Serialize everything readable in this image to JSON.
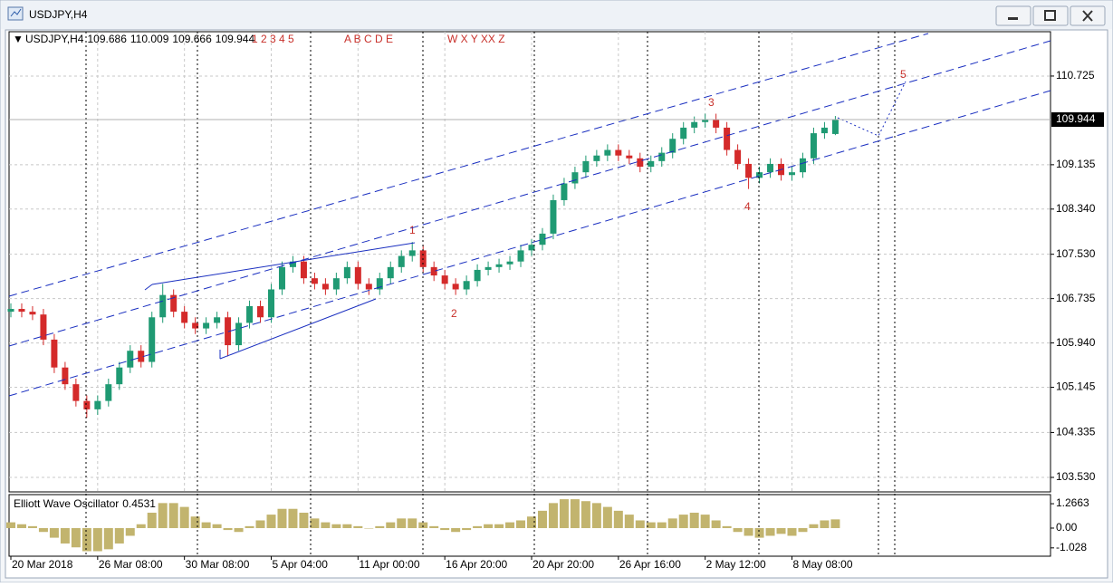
{
  "window": {
    "title": "USDJPY,H4"
  },
  "chart_data": [
    {
      "type": "candlestick",
      "symbol": "USDJPY,H4",
      "wave_labels": [
        "1 2 3 4 5",
        "A B C D E",
        "W X Y XX Z"
      ],
      "annotations": [
        "1",
        "2",
        "3",
        "4",
        "5"
      ],
      "x": [
        0,
        3,
        6,
        9,
        12,
        15,
        18,
        21,
        24,
        27,
        30,
        33,
        36,
        39,
        42,
        45,
        48,
        51,
        54,
        57,
        60,
        63,
        66,
        69,
        72,
        75,
        78,
        81,
        84,
        87,
        90,
        93,
        96,
        99,
        102,
        105,
        108,
        111,
        114,
        117,
        120,
        123,
        126,
        129,
        132,
        135,
        138,
        141,
        144,
        147,
        150,
        153,
        156,
        159,
        162,
        165,
        168,
        171,
        174,
        177,
        180,
        183,
        186,
        189,
        192,
        195,
        198,
        201,
        204,
        207,
        210,
        213,
        216,
        219,
        222,
        225,
        228
      ],
      "open": [
        106.5,
        106.55,
        106.5,
        106.45,
        106.0,
        105.5,
        105.2,
        104.9,
        104.75,
        104.9,
        105.2,
        105.5,
        105.8,
        105.6,
        106.4,
        106.8,
        106.5,
        106.3,
        106.2,
        106.3,
        106.4,
        105.9,
        106.3,
        106.6,
        106.4,
        106.9,
        107.3,
        107.4,
        107.1,
        107.0,
        106.9,
        107.1,
        107.3,
        107.0,
        106.9,
        107.1,
        107.3,
        107.5,
        107.6,
        107.3,
        107.15,
        107.0,
        106.9,
        107.05,
        107.25,
        107.3,
        107.35,
        107.4,
        107.6,
        107.7,
        107.9,
        108.5,
        108.8,
        109.0,
        109.2,
        109.3,
        109.4,
        109.3,
        109.25,
        109.1,
        109.2,
        109.35,
        109.6,
        109.8,
        109.9,
        109.95,
        109.8,
        109.4,
        109.15,
        108.9,
        109.0,
        109.15,
        108.95,
        109.0,
        109.25,
        109.7,
        109.686
      ],
      "high": [
        106.65,
        106.65,
        106.6,
        106.55,
        106.1,
        105.6,
        105.3,
        105.0,
        105.0,
        105.3,
        105.6,
        105.9,
        105.9,
        106.5,
        107.0,
        106.9,
        106.6,
        106.4,
        106.4,
        106.5,
        106.5,
        106.4,
        106.7,
        106.7,
        107.0,
        107.4,
        107.5,
        107.5,
        107.2,
        107.1,
        107.2,
        107.4,
        107.4,
        107.1,
        107.2,
        107.4,
        107.6,
        107.75,
        107.7,
        107.4,
        107.25,
        107.1,
        107.15,
        107.35,
        107.4,
        107.45,
        107.5,
        107.7,
        107.8,
        108.0,
        108.6,
        108.9,
        109.1,
        109.3,
        109.4,
        109.5,
        109.5,
        109.4,
        109.35,
        109.3,
        109.45,
        109.7,
        109.9,
        110.0,
        110.05,
        110.05,
        109.9,
        109.5,
        109.25,
        109.1,
        109.25,
        109.25,
        109.1,
        109.35,
        109.8,
        109.9,
        110.009
      ],
      "low": [
        106.4,
        106.4,
        106.35,
        105.9,
        105.4,
        105.1,
        104.8,
        104.6,
        104.65,
        104.8,
        105.1,
        105.4,
        105.5,
        105.5,
        106.3,
        106.4,
        106.2,
        106.1,
        106.1,
        106.2,
        105.7,
        105.8,
        106.2,
        106.3,
        106.3,
        106.8,
        107.2,
        107.0,
        106.9,
        106.8,
        106.8,
        107.0,
        106.9,
        106.8,
        106.8,
        107.0,
        107.2,
        107.4,
        107.2,
        107.05,
        106.9,
        106.8,
        106.8,
        106.95,
        107.15,
        107.2,
        107.25,
        107.3,
        107.5,
        107.6,
        107.8,
        108.4,
        108.7,
        108.9,
        109.1,
        109.2,
        109.2,
        109.15,
        109.0,
        109.0,
        109.1,
        109.25,
        109.5,
        109.7,
        109.8,
        109.7,
        109.3,
        109.05,
        108.7,
        108.8,
        108.9,
        108.85,
        108.85,
        108.9,
        109.15,
        109.6,
        109.666
      ],
      "close": [
        106.55,
        106.5,
        106.45,
        106.0,
        105.5,
        105.2,
        104.9,
        104.75,
        104.9,
        105.2,
        105.5,
        105.8,
        105.6,
        106.4,
        106.8,
        106.5,
        106.3,
        106.2,
        106.3,
        106.4,
        105.9,
        106.3,
        106.6,
        106.4,
        106.9,
        107.3,
        107.4,
        107.1,
        107.0,
        106.9,
        107.1,
        107.3,
        107.0,
        106.9,
        107.1,
        107.3,
        107.5,
        107.6,
        107.3,
        107.15,
        107.0,
        106.9,
        107.05,
        107.25,
        107.3,
        107.35,
        107.4,
        107.6,
        107.7,
        107.9,
        108.5,
        108.8,
        109.0,
        109.2,
        109.3,
        109.4,
        109.3,
        109.25,
        109.1,
        109.2,
        109.35,
        109.6,
        109.8,
        109.9,
        109.95,
        109.8,
        109.4,
        109.15,
        108.9,
        109.0,
        109.15,
        108.95,
        109.0,
        109.25,
        109.7,
        109.8,
        109.944
      ],
      "up_color": "#1f9a73",
      "down_color": "#d42a2a",
      "grid": true,
      "xlim": [
        -0.5,
        287.5
      ],
      "xticks": [
        {
          "value": 0,
          "label": "20 Mar 2018"
        },
        {
          "value": 24,
          "label": "26 Mar 08:00"
        },
        {
          "value": 48,
          "label": "30 Mar 08:00"
        },
        {
          "value": 72,
          "label": "5 Apr 04:00"
        },
        {
          "value": 96,
          "label": "11 Apr 00:00"
        },
        {
          "value": 120,
          "label": "16 Apr 20:00"
        },
        {
          "value": 144,
          "label": "20 Apr 20:00"
        },
        {
          "value": 168,
          "label": "26 Apr 16:00"
        },
        {
          "value": 192,
          "label": "2 May 12:00"
        },
        {
          "value": 216,
          "label": "8 May 08:00"
        }
      ],
      "ylim": [
        103.27,
        111.52
      ],
      "yticks": [
        110.725,
        109.135,
        {
          "value": 108.34,
          "label": "108.340"
        },
        {
          "value": 107.53,
          "label": "107.530"
        },
        106.735,
        {
          "value": 105.94,
          "label": "105.940"
        },
        105.145,
        104.335,
        {
          "value": 103.53,
          "label": "103.530"
        }
      ]
    },
    {
      "type": "bar",
      "title": "Elliott Wave Oscillator",
      "color": "#c2b46e",
      "x": [
        0,
        3,
        6,
        9,
        12,
        15,
        18,
        21,
        24,
        27,
        30,
        33,
        36,
        39,
        42,
        45,
        48,
        51,
        54,
        57,
        60,
        63,
        66,
        69,
        72,
        75,
        78,
        81,
        84,
        87,
        90,
        93,
        96,
        99,
        102,
        105,
        108,
        111,
        114,
        117,
        120,
        123,
        126,
        129,
        132,
        135,
        138,
        141,
        144,
        147,
        150,
        153,
        156,
        159,
        162,
        165,
        168,
        171,
        174,
        177,
        180,
        183,
        186,
        189,
        192,
        195,
        198,
        201,
        204,
        207,
        210,
        213,
        216,
        219,
        222,
        225,
        228
      ],
      "values": [
        0.3,
        0.2,
        0.1,
        -0.2,
        -0.5,
        -0.8,
        -1.0,
        -1.2,
        -1.2,
        -1.1,
        -0.8,
        -0.4,
        0.2,
        0.8,
        1.3,
        1.3,
        1.1,
        0.6,
        0.3,
        0.2,
        -0.1,
        -0.2,
        0.1,
        0.4,
        0.7,
        1.0,
        1.0,
        0.8,
        0.5,
        0.3,
        0.2,
        0.2,
        0.1,
        0.0,
        0.1,
        0.3,
        0.5,
        0.5,
        0.3,
        0.1,
        -0.1,
        -0.2,
        -0.1,
        0.1,
        0.2,
        0.2,
        0.3,
        0.4,
        0.6,
        0.9,
        1.3,
        1.5,
        1.5,
        1.4,
        1.3,
        1.1,
        0.9,
        0.7,
        0.4,
        0.3,
        0.3,
        0.5,
        0.7,
        0.8,
        0.7,
        0.4,
        0.1,
        -0.2,
        -0.4,
        -0.5,
        -0.4,
        -0.3,
        -0.4,
        -0.2,
        0.2,
        0.4,
        0.4531
      ],
      "xlim": [
        -0.5,
        287.5
      ],
      "ylim": [
        -1.46,
        1.74
      ],
      "yticks": [
        1.2663,
        {
          "value": 0,
          "label": "0.00"
        },
        -1.028
      ]
    }
  ]
}
